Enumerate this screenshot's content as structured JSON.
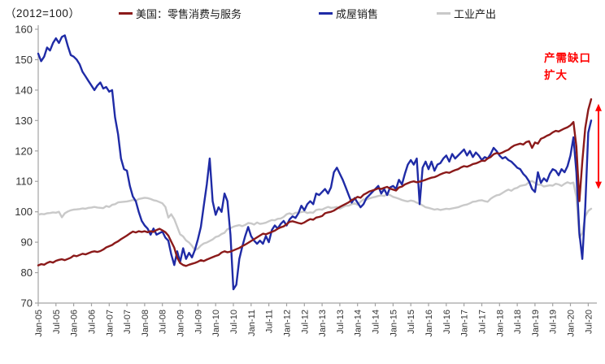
{
  "header": {
    "scale_note": "（2012=100）"
  },
  "annotation": {
    "line1": "产需缺口",
    "line2": "扩大",
    "color": "#FF0000"
  },
  "chart_data": {
    "type": "line",
    "title": "",
    "xlabel": "",
    "ylabel": "",
    "x_start": "Jan-05",
    "x_end": "Aug-20",
    "x_frequency": "monthly",
    "ylim": [
      70,
      160
    ],
    "yticks": [
      70,
      80,
      90,
      100,
      110,
      120,
      130,
      140,
      150,
      160
    ],
    "grid": false,
    "legend_position": "top",
    "x_tick_labels": [
      "Jan-05",
      "Jul-05",
      "Jan-06",
      "Jul-06",
      "Jan-07",
      "Jul-07",
      "Jan-08",
      "Jul-08",
      "Jan-09",
      "Jul-09",
      "Jan-10",
      "Jul-10",
      "Jan-11",
      "Jul-11",
      "Jan-12",
      "Jul-12",
      "Jan-13",
      "Jul-13",
      "Jan-14",
      "Jul-14",
      "Jan-15",
      "Jul-15",
      "Jan-16",
      "Jul-16",
      "Jan-17",
      "Jul-17",
      "Jan-18",
      "Jul-18",
      "Jan-19",
      "Jul-19",
      "Jan-20",
      "Jul-20"
    ],
    "series": [
      {
        "name": "美国：零售消费与服务",
        "color": "#8B1A1A",
        "values": [
          82.4,
          82.8,
          82.6,
          83.2,
          83.6,
          83.3,
          83.9,
          84.2,
          84.4,
          84.1,
          84.5,
          84.9,
          85.6,
          85.4,
          85.8,
          86.2,
          86.0,
          86.4,
          86.8,
          87.0,
          86.8,
          87.1,
          87.6,
          88.3,
          88.7,
          89.1,
          89.8,
          90.3,
          91.0,
          91.6,
          92.2,
          92.9,
          93.5,
          93.2,
          93.6,
          93.4,
          93.6,
          93.3,
          93.6,
          93.4,
          94.0,
          94.4,
          93.9,
          93.3,
          92.2,
          90.2,
          88.2,
          84.9,
          83.2,
          82.5,
          82.2,
          82.6,
          82.9,
          83.2,
          83.6,
          84.1,
          83.8,
          84.3,
          84.7,
          85.1,
          85.5,
          85.8,
          86.6,
          87.0,
          86.7,
          86.9,
          87.3,
          87.7,
          88.1,
          88.7,
          89.2,
          89.8,
          90.4,
          91.0,
          91.6,
          92.2,
          92.8,
          92.6,
          93.0,
          93.4,
          93.8,
          94.4,
          94.9,
          95.2,
          95.9,
          96.7,
          96.9,
          96.6,
          96.3,
          96.1,
          96.5,
          97.1,
          97.6,
          97.4,
          98.1,
          98.3,
          98.6,
          99.5,
          99.8,
          100.0,
          100.4,
          101.0,
          101.6,
          102.1,
          102.6,
          103.1,
          103.9,
          104.3,
          104.9,
          104.6,
          105.6,
          106.1,
          106.7,
          107.0,
          107.3,
          107.7,
          107.5,
          107.9,
          108.2,
          107.6,
          107.3,
          107.0,
          108.0,
          108.3,
          109.0,
          109.4,
          109.8,
          110.0,
          109.7,
          109.9,
          110.2,
          110.5,
          110.9,
          111.2,
          111.4,
          111.8,
          112.3,
          112.7,
          113.0,
          112.8,
          113.3,
          113.7,
          114.0,
          114.6,
          115.0,
          114.8,
          115.2,
          115.7,
          115.9,
          116.3,
          116.8,
          116.7,
          117.5,
          118.0,
          118.9,
          119.3,
          119.1,
          119.5,
          120.0,
          120.4,
          121.2,
          121.8,
          122.1,
          122.4,
          122.1,
          122.9,
          123.2,
          121.0,
          122.8,
          122.4,
          124.0,
          124.4,
          125.0,
          125.4,
          126.1,
          126.6,
          126.4,
          126.9,
          127.4,
          127.8,
          128.4,
          129.5,
          121.5,
          103.5,
          116.5,
          127.5,
          133.5,
          137.0
        ]
      },
      {
        "name": "成屋销售",
        "color": "#1F2BA6",
        "values": [
          152.0,
          149.5,
          151.0,
          154.0,
          153.0,
          155.5,
          157.0,
          155.5,
          157.5,
          158.0,
          154.5,
          151.5,
          151.0,
          150.0,
          148.5,
          146.0,
          144.5,
          143.0,
          141.5,
          140.0,
          141.5,
          142.5,
          140.5,
          141.0,
          139.5,
          140.0,
          131.0,
          125.5,
          117.5,
          114.0,
          113.5,
          108.5,
          105.0,
          103.5,
          100.0,
          97.0,
          95.5,
          94.5,
          92.5,
          94.5,
          92.5,
          93.0,
          93.5,
          91.5,
          90.5,
          86.0,
          82.5,
          87.0,
          83.5,
          88.0,
          84.5,
          86.5,
          85.0,
          87.5,
          91.0,
          95.0,
          102.0,
          109.0,
          117.5,
          103.5,
          99.0,
          101.5,
          100.0,
          106.0,
          103.5,
          92.5,
          74.5,
          76.0,
          84.5,
          88.5,
          92.0,
          95.0,
          92.0,
          90.5,
          89.5,
          90.5,
          89.5,
          92.0,
          90.0,
          94.0,
          95.5,
          94.5,
          96.0,
          97.0,
          95.5,
          97.5,
          98.5,
          98.0,
          99.5,
          102.0,
          100.5,
          102.5,
          103.5,
          102.5,
          106.0,
          105.5,
          106.5,
          107.5,
          106.0,
          108.0,
          113.0,
          114.5,
          112.5,
          110.5,
          108.0,
          105.5,
          103.0,
          104.5,
          103.0,
          101.5,
          102.5,
          104.5,
          105.5,
          106.5,
          107.5,
          108.5,
          106.0,
          107.5,
          105.5,
          108.0,
          108.5,
          107.5,
          110.5,
          109.0,
          112.5,
          115.5,
          117.0,
          115.5,
          117.5,
          102.5,
          114.5,
          116.5,
          114.0,
          116.5,
          113.5,
          115.5,
          116.0,
          117.5,
          118.5,
          116.5,
          119.0,
          117.5,
          118.5,
          119.5,
          120.5,
          118.5,
          120.0,
          118.0,
          119.5,
          118.5,
          117.0,
          118.0,
          117.5,
          119.0,
          121.0,
          120.0,
          118.5,
          117.5,
          118.0,
          117.0,
          116.5,
          115.5,
          114.5,
          114.0,
          112.5,
          111.5,
          110.0,
          107.5,
          106.5,
          113.0,
          109.5,
          111.0,
          110.0,
          112.5,
          114.0,
          113.5,
          112.0,
          114.0,
          113.0,
          115.0,
          118.5,
          124.5,
          113.0,
          93.0,
          84.5,
          101.5,
          126.0,
          130.0
        ]
      },
      {
        "name": "工业产出",
        "color": "#C9C9C9",
        "values": [
          99.0,
          99.3,
          99.2,
          99.5,
          99.6,
          99.8,
          99.7,
          100.0,
          98.2,
          99.5,
          100.1,
          100.5,
          100.7,
          100.8,
          100.9,
          101.1,
          101.0,
          101.3,
          101.4,
          101.6,
          101.4,
          101.3,
          101.2,
          101.9,
          101.6,
          102.3,
          102.5,
          103.1,
          103.2,
          103.3,
          103.4,
          103.6,
          103.9,
          103.6,
          104.2,
          104.4,
          104.6,
          104.5,
          104.2,
          103.8,
          103.6,
          103.2,
          102.8,
          101.6,
          98.1,
          99.2,
          97.6,
          95.1,
          92.6,
          91.9,
          90.6,
          89.9,
          88.8,
          87.4,
          87.9,
          88.9,
          89.6,
          89.9,
          90.4,
          90.9,
          91.7,
          92.0,
          92.7,
          93.1,
          94.3,
          94.6,
          95.1,
          95.4,
          95.6,
          95.3,
          95.7,
          96.3,
          96.2,
          95.8,
          96.5,
          96.0,
          96.2,
          96.4,
          96.9,
          97.3,
          97.2,
          97.7,
          97.8,
          98.3,
          99.2,
          99.5,
          99.1,
          99.7,
          99.7,
          99.9,
          100.1,
          99.6,
          99.8,
          99.7,
          100.6,
          100.8,
          100.7,
          101.2,
          101.6,
          101.3,
          101.4,
          101.6,
          101.0,
          101.5,
          102.0,
          102.0,
          102.5,
          102.8,
          102.3,
          103.3,
          104.1,
          104.0,
          104.4,
          104.7,
          104.9,
          105.2,
          105.4,
          105.2,
          105.8,
          105.5,
          104.9,
          104.6,
          104.3,
          103.9,
          103.6,
          103.4,
          103.7,
          103.5,
          103.0,
          102.6,
          102.1,
          101.5,
          101.3,
          101.0,
          100.7,
          100.9,
          100.6,
          100.8,
          101.0,
          100.9,
          101.1,
          101.3,
          101.5,
          101.9,
          102.2,
          102.4,
          102.8,
          103.3,
          103.4,
          103.7,
          103.8,
          103.5,
          103.3,
          104.3,
          104.9,
          105.4,
          105.6,
          106.2,
          106.8,
          107.3,
          106.9,
          107.6,
          107.9,
          108.5,
          108.7,
          108.9,
          109.8,
          110.1,
          109.5,
          108.9,
          108.9,
          108.3,
          108.5,
          108.7,
          108.6,
          109.2,
          109.0,
          108.5,
          109.2,
          109.7,
          109.3,
          109.6,
          104.8,
          91.5,
          93.0,
          98.5,
          100.3,
          101.0
        ]
      }
    ],
    "annotation": {
      "text_lines": [
        "产需缺口",
        "扩大"
      ],
      "color": "#FF0000",
      "arrow": {
        "from_value": 135.5,
        "to_value": 107.5,
        "color": "#FF0000"
      }
    }
  }
}
